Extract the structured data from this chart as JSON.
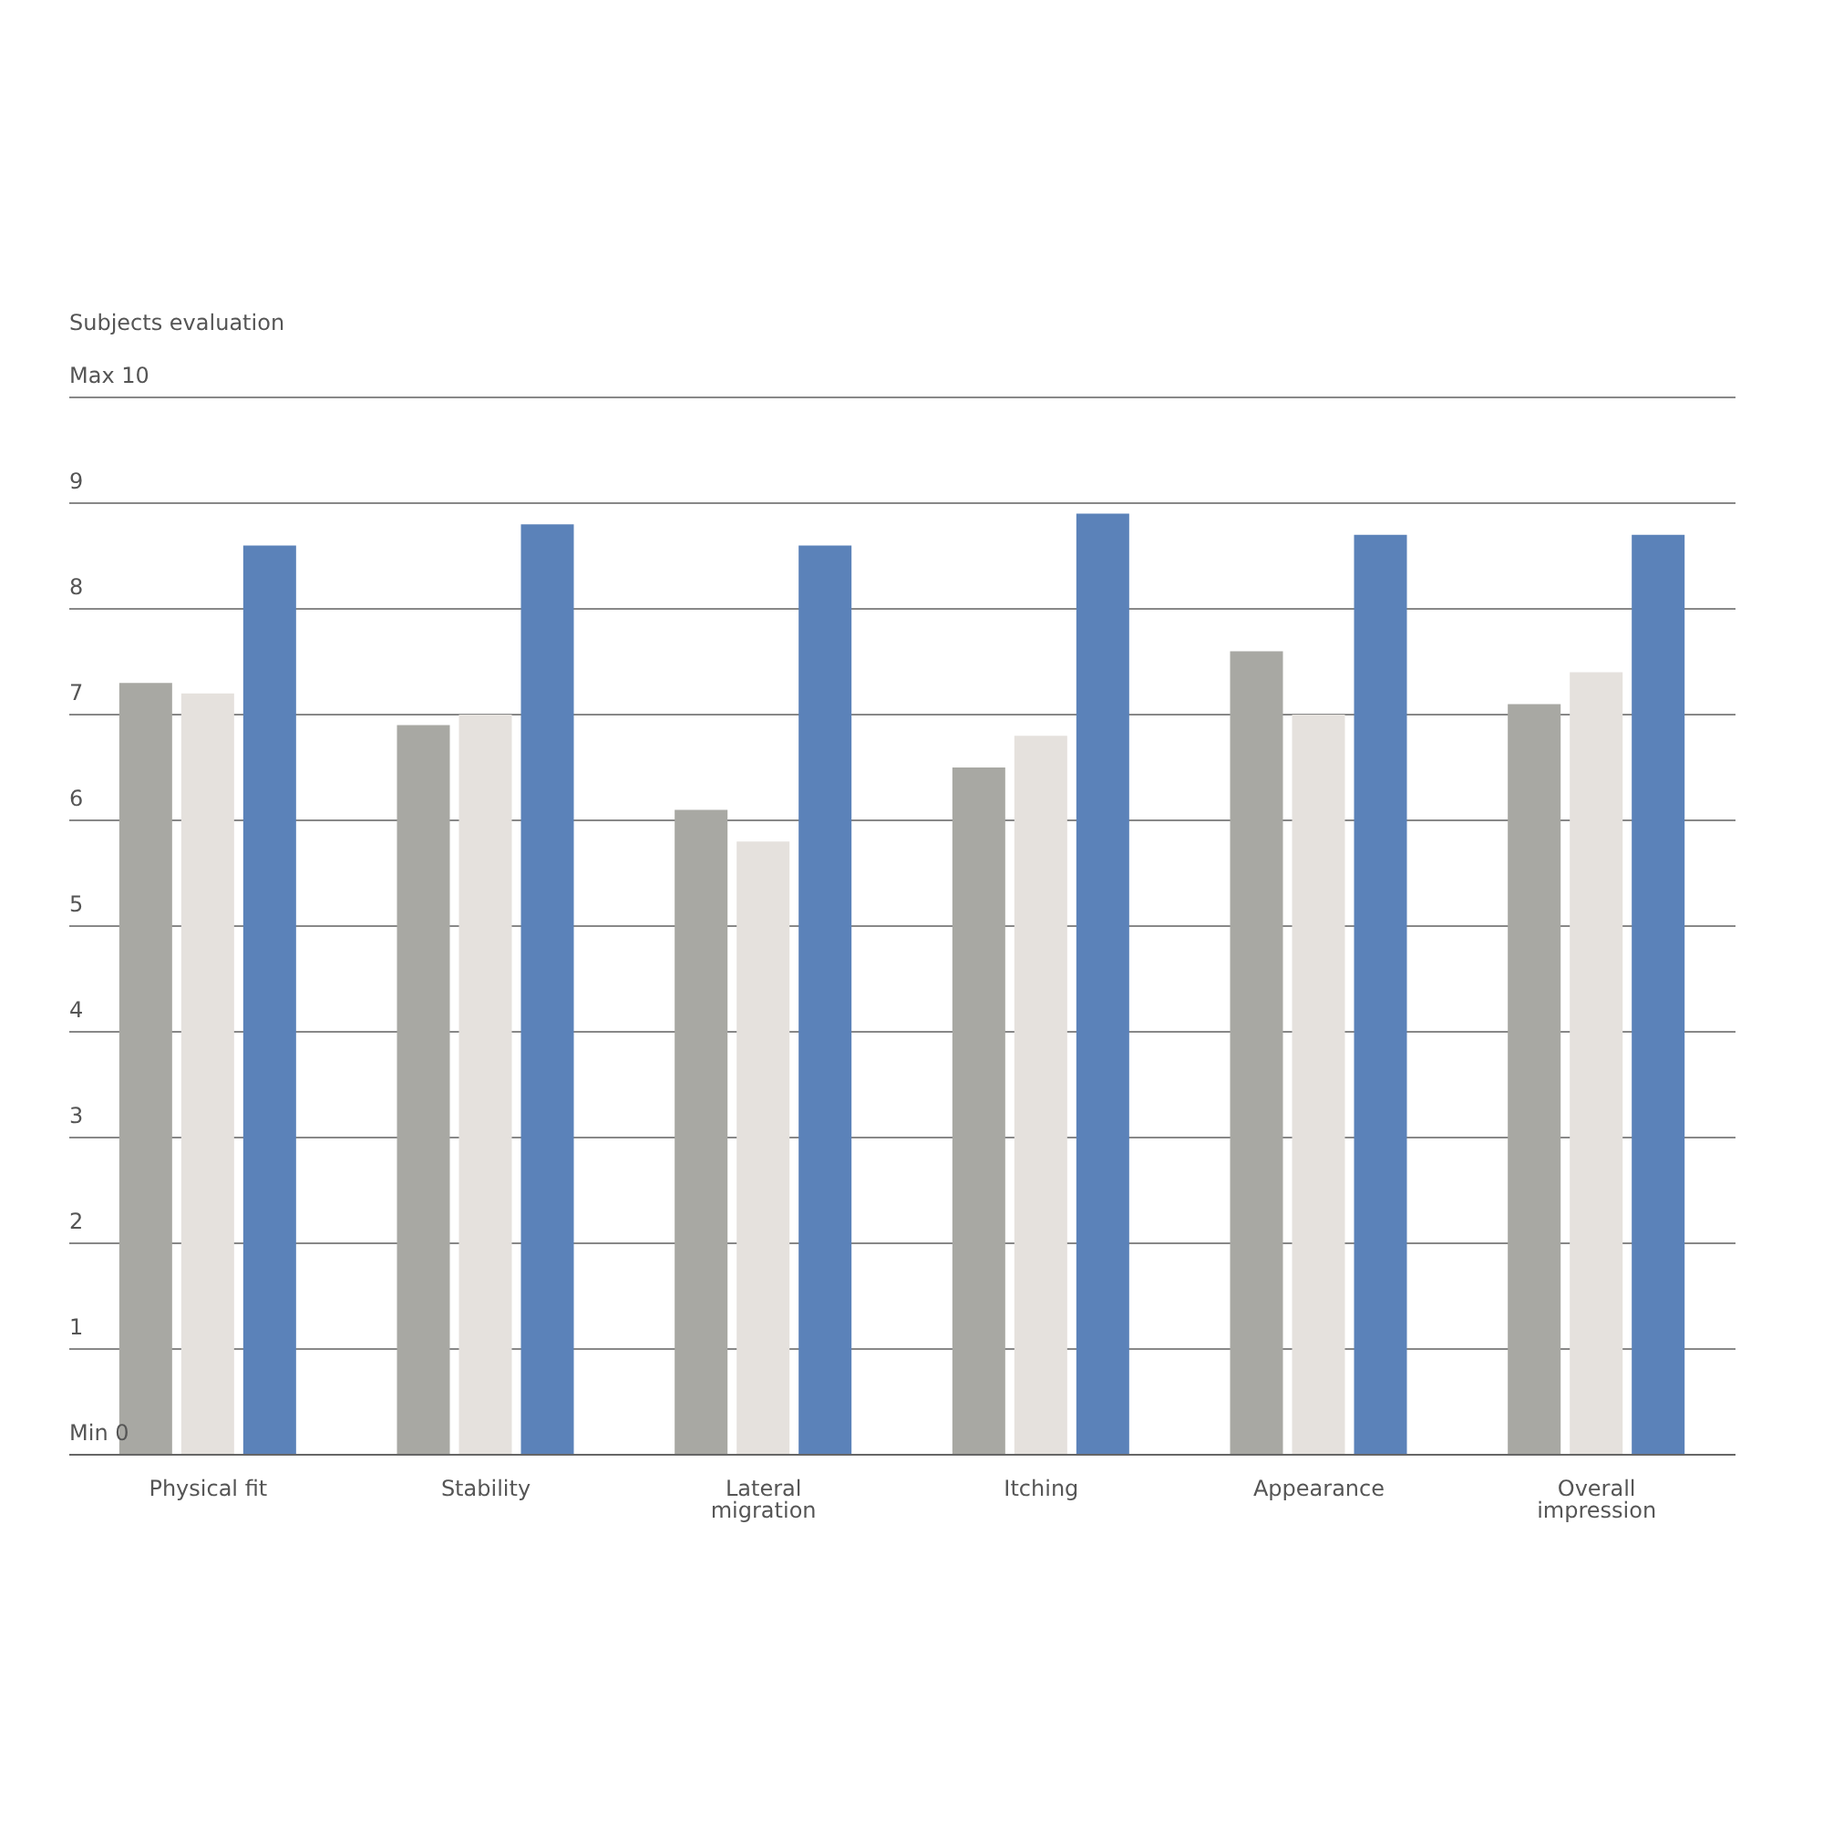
{
  "chart_data": {
    "type": "bar",
    "ylabel": "Subjects evaluation",
    "categories": [
      "Physical fit",
      "Stability",
      "Lateral migration",
      "Itching",
      "Appearance",
      "Overall impression"
    ],
    "series": [
      {
        "color": "#a8a8a3",
        "values": [
          7.3,
          6.9,
          6.1,
          6.5,
          7.6,
          7.1
        ]
      },
      {
        "color": "#e5e1dd",
        "values": [
          7.2,
          7.0,
          5.8,
          6.8,
          7.0,
          7.4
        ]
      },
      {
        "color": "#5b82b9",
        "values": [
          8.6,
          8.8,
          8.6,
          8.9,
          8.7,
          8.7
        ]
      }
    ],
    "ylim": [
      0,
      10
    ],
    "yticks": [
      {
        "value": 0,
        "label": "Min 0"
      },
      1,
      2,
      3,
      4,
      5,
      6,
      7,
      8,
      9,
      {
        "value": 10,
        "label": "Max 10"
      }
    ],
    "grid": "y",
    "legend": false
  }
}
